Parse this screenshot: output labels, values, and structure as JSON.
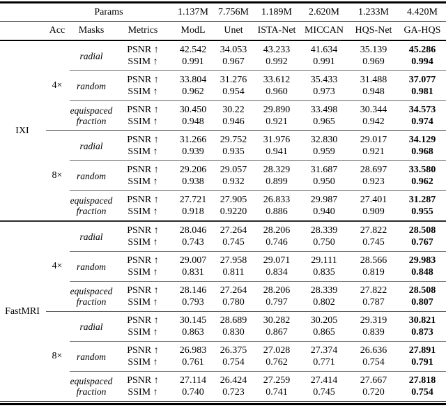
{
  "header": {
    "params_label": "Params",
    "params": [
      "1.137M",
      "7.756M",
      "1.189M",
      "2.620M",
      "1.233M",
      "4.420M"
    ],
    "acc": "Acc",
    "masks": "Masks",
    "metrics": "Metrics",
    "methods": [
      "ModL",
      "Unet",
      "ISTA-Net",
      "MICCAN",
      "HQS-Net",
      "GA-HQS"
    ]
  },
  "labels": {
    "psnr": "PSNR ↑",
    "ssim": "SSIM ↑"
  },
  "sections": [
    {
      "dataset": "IXI",
      "groups": [
        {
          "acc": "4×",
          "blocks": [
            {
              "mask": [
                "radial"
              ],
              "psnr": [
                "42.542",
                "34.053",
                "43.233",
                "41.634",
                "35.139",
                "45.286"
              ],
              "ssim": [
                "0.991",
                "0.967",
                "0.992",
                "0.991",
                "0.969",
                "0.994"
              ]
            },
            {
              "mask": [
                "random"
              ],
              "psnr": [
                "33.804",
                "31.276",
                "33.612",
                "35.433",
                "31.488",
                "37.077"
              ],
              "ssim": [
                "0.962",
                "0.954",
                "0.960",
                "0.973",
                "0.948",
                "0.981"
              ]
            },
            {
              "mask": [
                "equispaced",
                "fraction"
              ],
              "psnr": [
                "30.450",
                "30.22",
                "29.890",
                "33.498",
                "30.344",
                "34.573"
              ],
              "ssim": [
                "0.948",
                "0.946",
                "0.921",
                "0.965",
                "0.942",
                "0.974"
              ]
            }
          ]
        },
        {
          "acc": "8×",
          "blocks": [
            {
              "mask": [
                "radial"
              ],
              "psnr": [
                "31.266",
                "29.752",
                "31.976",
                "32.830",
                "29.017",
                "34.129"
              ],
              "ssim": [
                "0.939",
                "0.935",
                "0.941",
                "0.959",
                "0.921",
                "0.968"
              ]
            },
            {
              "mask": [
                "random"
              ],
              "psnr": [
                "29.206",
                "29.057",
                "28.329",
                "31.687",
                "28.697",
                "33.580"
              ],
              "ssim": [
                "0.938",
                "0.932",
                "0.899",
                "0.950",
                "0.923",
                "0.962"
              ]
            },
            {
              "mask": [
                "equispaced",
                "fraction"
              ],
              "psnr": [
                "27.721",
                "27.905",
                "26.833",
                "29.987",
                "27.401",
                "31.287"
              ],
              "ssim": [
                "0.918",
                "0.9220",
                "0.886",
                "0.940",
                "0.909",
                "0.955"
              ]
            }
          ]
        }
      ]
    },
    {
      "dataset": "FastMRI",
      "groups": [
        {
          "acc": "4×",
          "blocks": [
            {
              "mask": [
                "radial"
              ],
              "psnr": [
                "28.046",
                "27.264",
                "28.206",
                "28.339",
                "27.822",
                "28.508"
              ],
              "ssim": [
                "0.743",
                "0.745",
                "0.746",
                "0.750",
                "0.745",
                "0.767"
              ]
            },
            {
              "mask": [
                "random"
              ],
              "psnr": [
                "29.007",
                "27.958",
                "29.071",
                "29.111",
                "28.566",
                "29.983"
              ],
              "ssim": [
                "0.831",
                "0.811",
                "0.834",
                "0.835",
                "0.819",
                "0.848"
              ]
            },
            {
              "mask": [
                "equispaced",
                "fraction"
              ],
              "psnr": [
                "28.146",
                "27.264",
                "28.206",
                "28.339",
                "27.822",
                "28.508"
              ],
              "ssim": [
                "0.793",
                "0.780",
                "0.797",
                "0.802",
                "0.787",
                "0.807"
              ]
            }
          ]
        },
        {
          "acc": "8×",
          "blocks": [
            {
              "mask": [
                "radial"
              ],
              "psnr": [
                "30.145",
                "28.689",
                "30.282",
                "30.205",
                "29.319",
                "30.821"
              ],
              "ssim": [
                "0.863",
                "0.830",
                "0.867",
                "0.865",
                "0.839",
                "0.873"
              ]
            },
            {
              "mask": [
                "random"
              ],
              "psnr": [
                "26.983",
                "26.375",
                "27.028",
                "27.374",
                "26.636",
                "27.891"
              ],
              "ssim": [
                "0.761",
                "0.754",
                "0.762",
                "0.771",
                "0.754",
                "0.791"
              ]
            },
            {
              "mask": [
                "equispaced",
                "fraction"
              ],
              "psnr": [
                "27.114",
                "26.424",
                "27.259",
                "27.414",
                "27.667",
                "27.818"
              ],
              "ssim": [
                "0.740",
                "0.723",
                "0.741",
                "0.745",
                "0.720",
                "0.754"
              ]
            }
          ]
        }
      ]
    }
  ]
}
